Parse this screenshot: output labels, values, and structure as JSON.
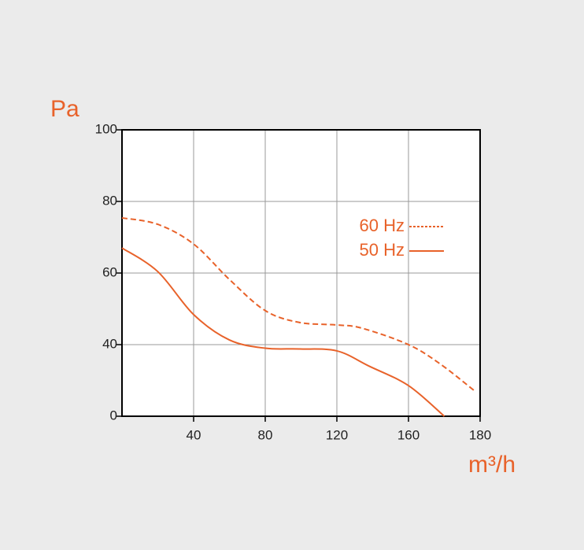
{
  "chart_data": {
    "type": "line",
    "y_label": "Pa",
    "x_label": "m³/h",
    "x": [
      0,
      20,
      40,
      60,
      80,
      99,
      120,
      134,
      160,
      169,
      178.5
    ],
    "series": [
      {
        "name": "60 Hz",
        "color": "#e8622a",
        "dash": true,
        "x": [
          0,
          20,
          40,
          60,
          80,
          99,
          120,
          134,
          160,
          169,
          178.5
        ],
        "values": [
          75.4,
          73.6,
          68.1,
          58.2,
          49.5,
          46.2,
          45.5,
          44.6,
          40,
          29,
          14.1
        ]
      },
      {
        "name": "50 Hz",
        "color": "#e8622a",
        "dash": false,
        "x": [
          0,
          20,
          40,
          60,
          80,
          99,
          120,
          138,
          160,
          170
        ],
        "values": [
          67,
          60.4,
          48.4,
          41.3,
          38,
          37.6,
          36.5,
          28,
          17.1,
          0
        ]
      }
    ],
    "xlim": [
      0,
      180
    ],
    "xticks": [
      40,
      80,
      120,
      160,
      180
    ],
    "ylim": [
      0,
      100
    ],
    "yticks": [
      0,
      40,
      60,
      80,
      100
    ],
    "grid": true,
    "legend": "upper right"
  }
}
